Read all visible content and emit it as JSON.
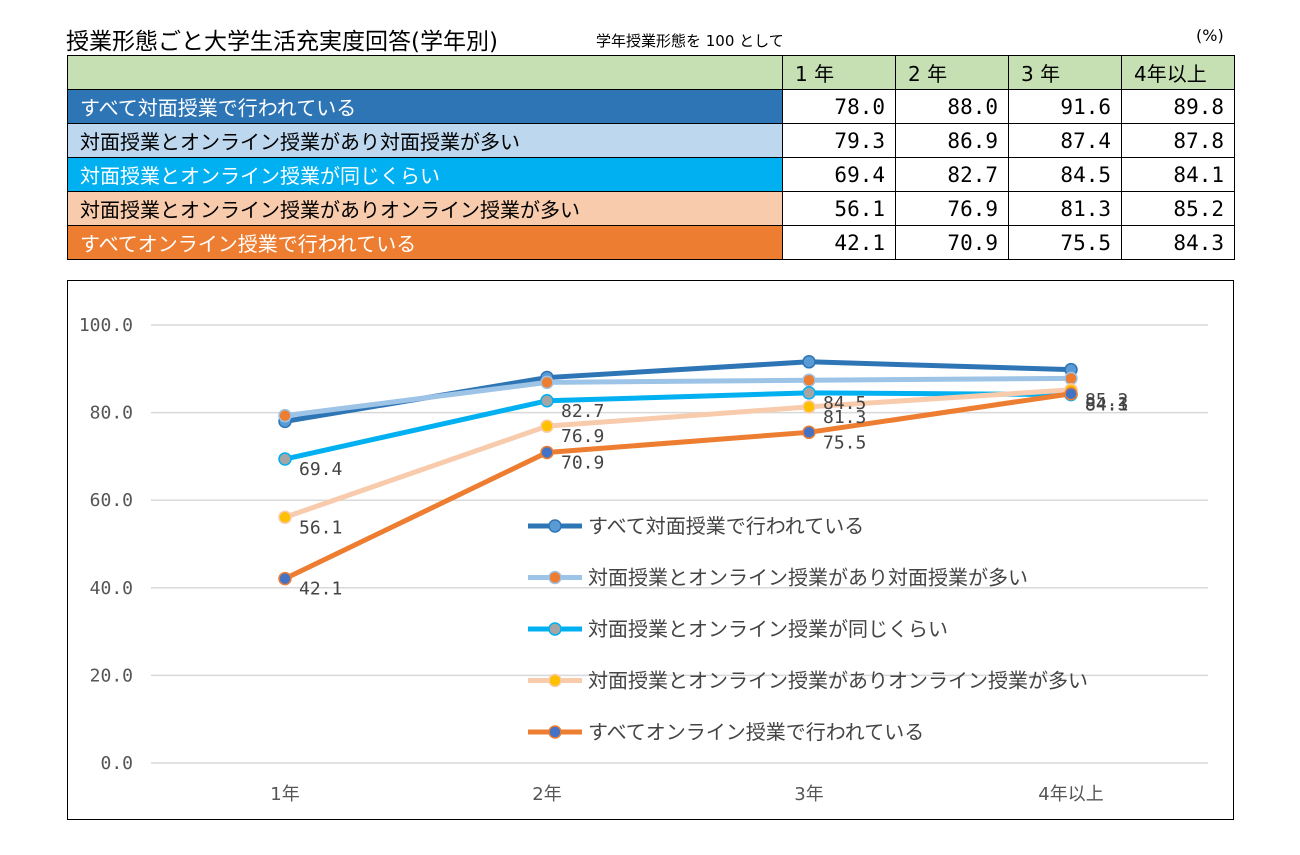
{
  "header": {
    "title": "授業形態ごと大学生活充実度回答(学年別)",
    "subtitle": "学年授業形態を 100 として",
    "unit": "(%)"
  },
  "table": {
    "columns": [
      "1 年",
      "2 年",
      "3 年",
      "4年以上"
    ],
    "rows": [
      {
        "label": "すべて対面授業で行われている",
        "values": [
          "78.0",
          "88.0",
          "91.6",
          "89.8"
        ]
      },
      {
        "label": "対面授業とオンライン授業があり対面授業が多い",
        "values": [
          "79.3",
          "86.9",
          "87.4",
          "87.8"
        ]
      },
      {
        "label": "対面授業とオンライン授業が同じくらい",
        "values": [
          "69.4",
          "82.7",
          "84.5",
          "84.1"
        ]
      },
      {
        "label": "対面授業とオンライン授業がありオンライン授業が多い",
        "values": [
          "56.1",
          "76.9",
          "81.3",
          "85.2"
        ]
      },
      {
        "label": "すべてオンライン授業で行われている",
        "values": [
          "42.1",
          "70.9",
          "75.5",
          "84.3"
        ]
      }
    ]
  },
  "colors": {
    "header_bg": "#c6e0b4",
    "series": [
      "#2e75b6",
      "#9dc3e6",
      "#00b0f0",
      "#f8cbad",
      "#ed7d31"
    ],
    "markers": [
      "#5b9bd5",
      "#ed7d31",
      "#a5a5a5",
      "#ffc000",
      "#4472c4"
    ],
    "row_text": [
      "#ffffff",
      "#000000",
      "#ffffff",
      "#000000",
      "#ffffff"
    ]
  },
  "chart_data": {
    "type": "line",
    "categories": [
      "1年",
      "2年",
      "3年",
      "4年以上"
    ],
    "ylim": [
      0,
      100
    ],
    "yticks": [
      "0.0",
      "20.0",
      "40.0",
      "60.0",
      "80.0",
      "100.0"
    ],
    "grid": true,
    "legend_position": "inside-bottom-right",
    "series": [
      {
        "name": "すべて対面授業で行われている",
        "values": [
          78.0,
          88.0,
          91.6,
          89.8
        ]
      },
      {
        "name": "対面授業とオンライン授業があり対面授業が多い",
        "values": [
          79.3,
          86.9,
          87.4,
          87.8
        ]
      },
      {
        "name": "対面授業とオンライン授業が同じくらい",
        "values": [
          69.4,
          82.7,
          84.5,
          84.1
        ]
      },
      {
        "name": "対面授業とオンライン授業がありオンライン授業が多い",
        "values": [
          56.1,
          76.9,
          81.3,
          85.2
        ]
      },
      {
        "name": "すべてオンライン授業で行われている",
        "values": [
          42.1,
          70.9,
          75.5,
          84.3
        ]
      }
    ],
    "data_labels": [
      {
        "series": 2,
        "labels": [
          "69.4",
          "82.7",
          "84.5",
          "84.1"
        ]
      },
      {
        "series": 3,
        "labels": [
          "56.1",
          "76.9",
          "81.3",
          "85.2"
        ]
      },
      {
        "series": 4,
        "labels": [
          "42.1",
          "70.9",
          "75.5",
          "84.3"
        ]
      }
    ]
  }
}
